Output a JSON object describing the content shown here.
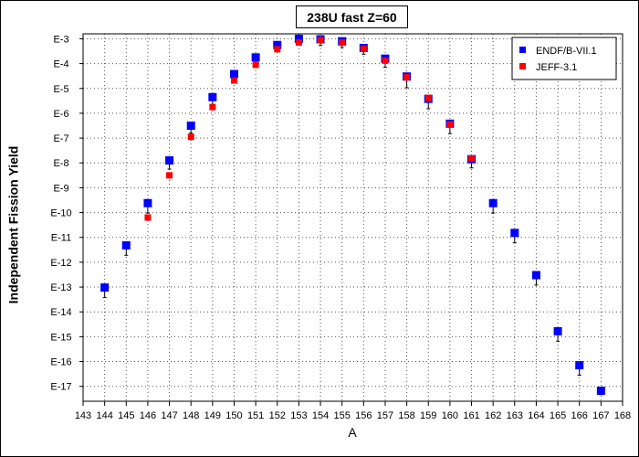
{
  "chart_data": {
    "type": "scatter",
    "title": "238U fast Z=60",
    "xlabel": "A",
    "ylabel": "Independent Fission Yield",
    "xlim": [
      143,
      168
    ],
    "ylim_log10": [
      -17.6,
      -2.8
    ],
    "yscale": "log",
    "grid": true,
    "legend_position": "top-right",
    "x_ticks": [
      "143",
      "144",
      "145",
      "146",
      "147",
      "148",
      "149",
      "150",
      "151",
      "152",
      "153",
      "154",
      "155",
      "156",
      "157",
      "158",
      "159",
      "160",
      "161",
      "162",
      "163",
      "164",
      "165",
      "166",
      "167",
      "168"
    ],
    "y_ticks": [
      "E-3",
      "E-4",
      "E-5",
      "E-6",
      "E-7",
      "E-8",
      "E-9",
      "E-10",
      "E-11",
      "E-12",
      "E-13",
      "E-14",
      "E-15",
      "E-16",
      "E-17"
    ],
    "series": [
      {
        "name": "ENDF/B-VII.1",
        "color": "#0000ff",
        "marker": "square",
        "points": [
          {
            "x": 144,
            "log10y": -13.02,
            "err": 0.4
          },
          {
            "x": 145,
            "log10y": -11.32,
            "err": 0.4
          },
          {
            "x": 146,
            "log10y": -9.62,
            "err": 0.4
          },
          {
            "x": 147,
            "log10y": -7.9,
            "err": 0.35
          },
          {
            "x": 148,
            "log10y": -6.5,
            "err": 0.3
          },
          {
            "x": 149,
            "log10y": -5.35,
            "err": 0.3
          },
          {
            "x": 150,
            "log10y": -4.42,
            "err": 0.25
          },
          {
            "x": 151,
            "log10y": -3.75,
            "err": 0.25
          },
          {
            "x": 152,
            "log10y": -3.25,
            "err": 0.25
          },
          {
            "x": 153,
            "log10y": -3.0,
            "err": 0.25
          },
          {
            "x": 154,
            "log10y": -3.02,
            "err": 0.25
          },
          {
            "x": 155,
            "log10y": -3.1,
            "err": 0.25
          },
          {
            "x": 156,
            "log10y": -3.37,
            "err": 0.25
          },
          {
            "x": 157,
            "log10y": -3.8,
            "err": 0.35
          },
          {
            "x": 158,
            "log10y": -4.52,
            "err": 0.45
          },
          {
            "x": 159,
            "log10y": -5.42,
            "err": 0.4
          },
          {
            "x": 160,
            "log10y": -6.42,
            "err": 0.4
          },
          {
            "x": 161,
            "log10y": -7.85,
            "err": 0.35
          },
          {
            "x": 162,
            "log10y": -9.62,
            "err": 0.4
          },
          {
            "x": 163,
            "log10y": -10.82,
            "err": 0.4
          },
          {
            "x": 164,
            "log10y": -12.52,
            "err": 0.4
          },
          {
            "x": 165,
            "log10y": -14.78,
            "err": 0.4
          },
          {
            "x": 166,
            "log10y": -16.15,
            "err": 0.4
          },
          {
            "x": 167,
            "log10y": -17.18,
            "err": 0.15
          }
        ]
      },
      {
        "name": "JEFF-3.1",
        "color": "#ff0000",
        "marker": "square",
        "points": [
          {
            "x": 146,
            "log10y": -10.2
          },
          {
            "x": 147,
            "log10y": -8.5
          },
          {
            "x": 148,
            "log10y": -6.95
          },
          {
            "x": 149,
            "log10y": -5.75
          },
          {
            "x": 150,
            "log10y": -4.68
          },
          {
            "x": 151,
            "log10y": -4.05
          },
          {
            "x": 152,
            "log10y": -3.42
          },
          {
            "x": 153,
            "log10y": -3.15
          },
          {
            "x": 154,
            "log10y": -3.05
          },
          {
            "x": 155,
            "log10y": -3.15
          },
          {
            "x": 156,
            "log10y": -3.4
          },
          {
            "x": 157,
            "log10y": -3.88
          },
          {
            "x": 158,
            "log10y": -4.55
          },
          {
            "x": 159,
            "log10y": -5.38
          },
          {
            "x": 160,
            "log10y": -6.45
          },
          {
            "x": 161,
            "log10y": -7.82
          }
        ]
      }
    ]
  }
}
